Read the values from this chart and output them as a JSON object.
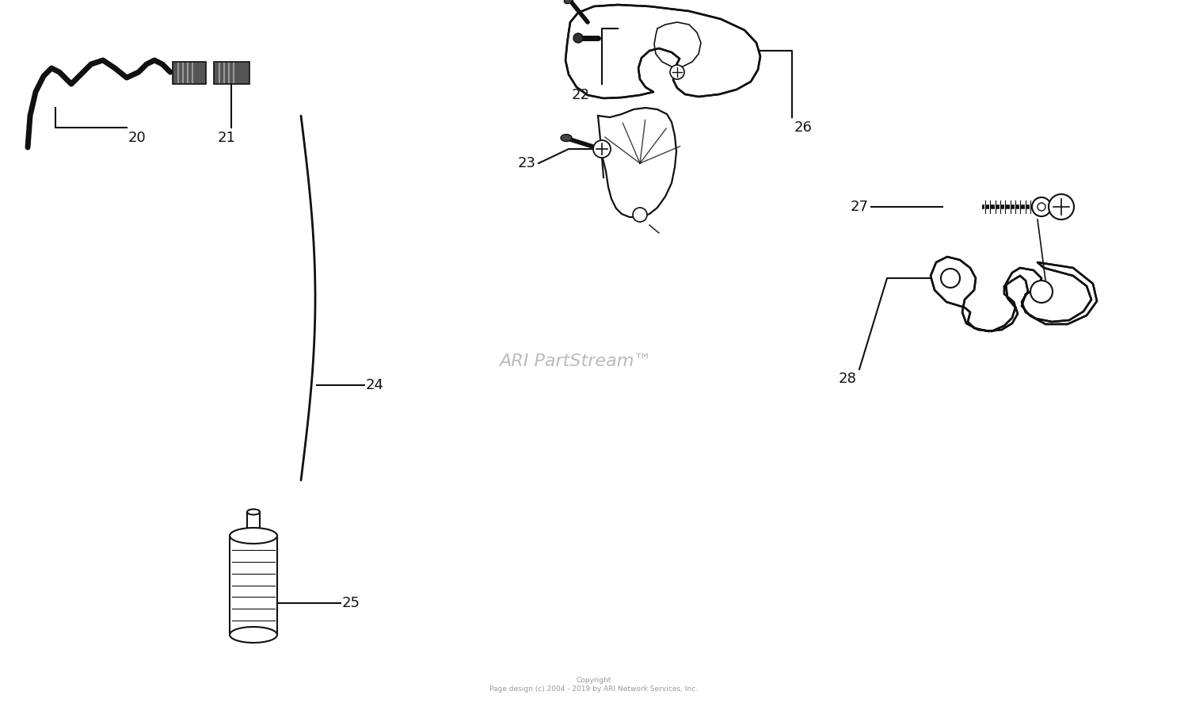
{
  "background_color": "#ffffff",
  "watermark_text": "ARI PartStream™",
  "watermark_color": "#bbbbbb",
  "watermark_fontsize": 16,
  "copyright_text": "Copyright\nPage design (c) 2004 - 2019 by ARI Network Services, Inc.",
  "copyright_color": "#999999",
  "copyright_fontsize": 6.5,
  "label_fontsize": 13,
  "label_color": "#111111",
  "line_color": "#111111",
  "line_width": 1.5,
  "fig_w": 15.0,
  "fig_h": 9.06
}
